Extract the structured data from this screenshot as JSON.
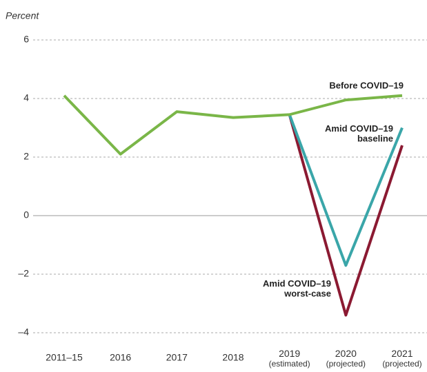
{
  "chart_data": {
    "type": "line",
    "y_label": "Percent",
    "categories": [
      "2011–15",
      "2016",
      "2017",
      "2018",
      "2019\n(estimated)",
      "2020\n(projected)",
      "2021\n(projected)"
    ],
    "series": [
      {
        "name": "Before COVID–19",
        "color": "#7ab648",
        "values": [
          4.1,
          2.1,
          3.55,
          3.35,
          3.45,
          3.95,
          4.1
        ]
      },
      {
        "name": "Amid COVID–19\nbaseline",
        "color": "#3aa6a9",
        "values": [
          null,
          null,
          null,
          null,
          3.45,
          -1.7,
          3.0
        ]
      },
      {
        "name": "Amid COVID–19\nworst-case",
        "color": "#8b1a32",
        "values": [
          null,
          null,
          null,
          null,
          3.45,
          -3.4,
          2.4
        ]
      }
    ],
    "ylim": [
      -4.2,
      6.4
    ],
    "yticks": [
      6,
      4,
      2,
      0,
      {
        "value": -2,
        "label": "–2"
      },
      {
        "value": -4,
        "label": "–4"
      }
    ],
    "grid": true
  }
}
